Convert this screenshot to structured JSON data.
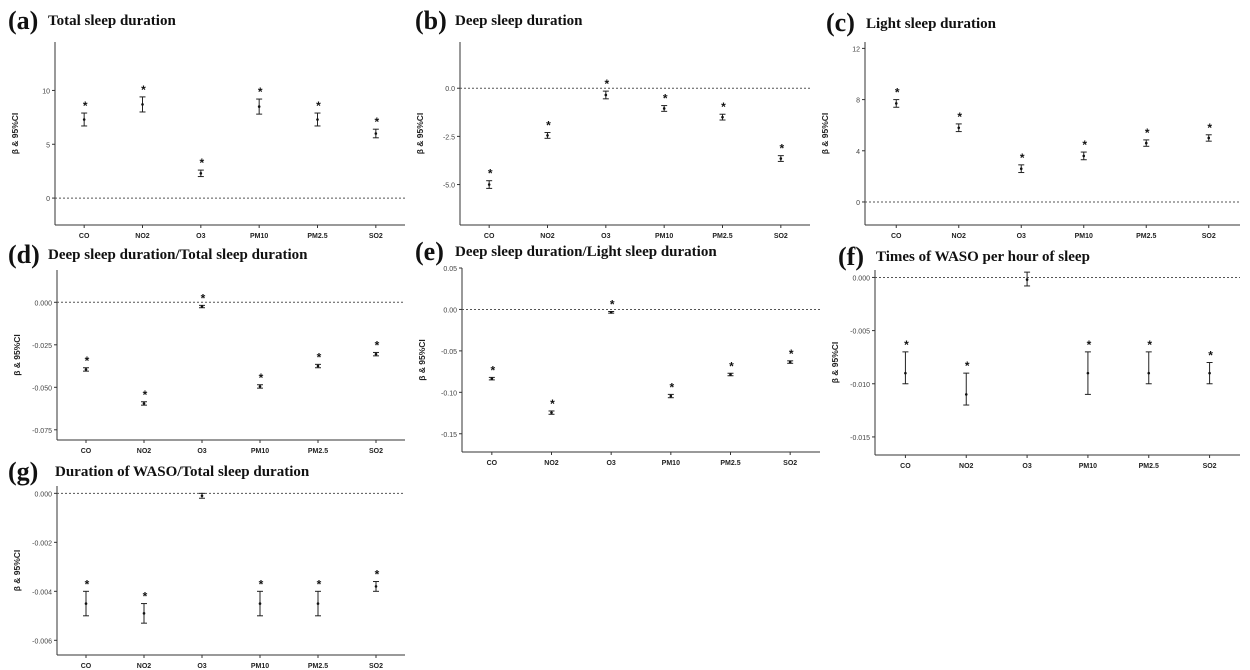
{
  "chart_data": [
    {
      "id": "a",
      "panel_label": "(a)",
      "title": "Total sleep duration",
      "type": "scatter",
      "ylabel": "β & 95%CI",
      "categories": [
        "CO",
        "NO2",
        "O3",
        "PM10",
        "PM2.5",
        "SO2"
      ],
      "ylim": [
        -2.5,
        14.5
      ],
      "yticks": [
        0,
        5,
        10
      ],
      "ytick_labels": [
        "0",
        "5",
        "10"
      ],
      "reference_line": 0,
      "values": [
        7.3,
        8.7,
        2.3,
        8.5,
        7.3,
        6.0
      ],
      "ci_low": [
        6.7,
        8.0,
        2.0,
        7.8,
        6.7,
        5.6
      ],
      "ci_high": [
        7.9,
        9.4,
        2.6,
        9.2,
        7.9,
        6.4
      ],
      "significance": [
        "*",
        "*",
        "*",
        "*",
        "*",
        "*"
      ]
    },
    {
      "id": "b",
      "panel_label": "(b)",
      "title": "Deep sleep duration",
      "type": "scatter",
      "ylabel": "β & 95%CI",
      "categories": [
        "CO",
        "NO2",
        "O3",
        "PM10",
        "PM2.5",
        "SO2"
      ],
      "ylim": [
        -7.1,
        2.4
      ],
      "yticks": [
        -5.0,
        -2.5,
        0.0
      ],
      "ytick_labels": [
        "-5.0",
        "-2.5",
        "0.0"
      ],
      "reference_line": 0,
      "values": [
        -5.0,
        -2.45,
        -0.35,
        -1.05,
        -1.5,
        -3.65
      ],
      "ci_low": [
        -5.2,
        -2.6,
        -0.55,
        -1.2,
        -1.65,
        -3.8
      ],
      "ci_high": [
        -4.8,
        -2.3,
        -0.15,
        -0.9,
        -1.35,
        -3.5
      ],
      "significance": [
        "*",
        "*",
        "*",
        "*",
        "*",
        "*"
      ]
    },
    {
      "id": "c",
      "panel_label": "(c)",
      "title": "Light sleep duration",
      "type": "scatter",
      "ylabel": "β & 95%CI",
      "categories": [
        "CO",
        "NO2",
        "O3",
        "PM10",
        "PM2.5",
        "SO2"
      ],
      "ylim": [
        -1.8,
        12.5
      ],
      "yticks": [
        0,
        4,
        8,
        12
      ],
      "ytick_labels": [
        "0",
        "4",
        "8",
        "12"
      ],
      "reference_line": 0,
      "values": [
        7.7,
        5.8,
        2.6,
        3.6,
        4.6,
        5.0
      ],
      "ci_low": [
        7.4,
        5.5,
        2.3,
        3.3,
        4.35,
        4.75
      ],
      "ci_high": [
        8.0,
        6.1,
        2.9,
        3.9,
        4.85,
        5.25
      ],
      "significance": [
        "*",
        "*",
        "*",
        "*",
        "*",
        "*"
      ]
    },
    {
      "id": "d",
      "panel_label": "(d)",
      "title": "Deep sleep duration/Total sleep duration",
      "type": "scatter",
      "ylabel": "β & 95%CI",
      "categories": [
        "CO",
        "NO2",
        "O3",
        "PM10",
        "PM2.5",
        "SO2"
      ],
      "ylim": [
        -0.081,
        0.019
      ],
      "yticks": [
        -0.075,
        -0.05,
        -0.025,
        0.0
      ],
      "ytick_labels": [
        "-0.075",
        "-0.050",
        "-0.025",
        "0.000"
      ],
      "reference_line": 0,
      "values": [
        -0.0395,
        -0.0595,
        -0.0025,
        -0.0495,
        -0.0375,
        -0.0305
      ],
      "ci_low": [
        -0.0405,
        -0.0605,
        -0.0032,
        -0.0505,
        -0.0385,
        -0.0315
      ],
      "ci_high": [
        -0.0385,
        -0.0585,
        -0.0018,
        -0.0485,
        -0.0365,
        -0.0295
      ],
      "significance": [
        "*",
        "*",
        "*",
        "*",
        "*",
        "*"
      ]
    },
    {
      "id": "e",
      "panel_label": "(e)",
      "title": "Deep sleep duration/Light sleep duration",
      "type": "scatter",
      "ylabel": "β & 95%CI",
      "categories": [
        "CO",
        "NO2",
        "O3",
        "PM10",
        "PM2.5",
        "SO2"
      ],
      "ylim": [
        -0.172,
        0.05
      ],
      "yticks": [
        -0.15,
        -0.1,
        -0.05,
        0.0,
        0.05
      ],
      "ytick_labels": [
        "-0.15",
        "-0.10",
        "-0.05",
        "0.00",
        "0.05"
      ],
      "reference_line": 0,
      "values": [
        -0.0835,
        -0.1245,
        -0.0035,
        -0.1045,
        -0.0785,
        -0.0635
      ],
      "ci_low": [
        -0.085,
        -0.1265,
        -0.0045,
        -0.1065,
        -0.08,
        -0.065
      ],
      "ci_high": [
        -0.082,
        -0.1225,
        -0.0025,
        -0.1025,
        -0.077,
        -0.062
      ],
      "significance": [
        "*",
        "*",
        "*",
        "*",
        "*",
        "*"
      ]
    },
    {
      "id": "f",
      "panel_label": "(f)",
      "title": "Times of WASO per hour of sleep",
      "type": "scatter",
      "ylabel": "β & 95%CI",
      "categories": [
        "CO",
        "NO2",
        "O3",
        "PM10",
        "PM2.5",
        "SO2"
      ],
      "ylim": [
        -0.0167,
        0.0007
      ],
      "yticks": [
        -0.015,
        -0.01,
        -0.005,
        0.0
      ],
      "ytick_labels": [
        "-0.015",
        "-0.010",
        "-0.005",
        "0.000"
      ],
      "reference_line": 0,
      "values": [
        -0.009,
        -0.011,
        -0.0002,
        -0.009,
        -0.009,
        -0.009
      ],
      "ci_low": [
        -0.01,
        -0.012,
        -0.0008,
        -0.011,
        -0.01,
        -0.01
      ],
      "ci_high": [
        -0.007,
        -0.009,
        0.0005,
        -0.007,
        -0.007,
        -0.008
      ],
      "significance": [
        "*",
        "*",
        "",
        "*",
        "*",
        "*"
      ]
    },
    {
      "id": "g",
      "panel_label": "(g)",
      "title": "Duration of WASO/Total sleep duration",
      "type": "scatter",
      "ylabel": "β & 95%CI",
      "categories": [
        "CO",
        "NO2",
        "O3",
        "PM10",
        "PM2.5",
        "SO2"
      ],
      "ylim": [
        -0.0066,
        0.0003
      ],
      "yticks": [
        -0.006,
        -0.004,
        -0.002,
        0.0
      ],
      "ytick_labels": [
        "-0.006",
        "-0.004",
        "-0.002",
        "0.000"
      ],
      "reference_line": 0,
      "values": [
        -0.0045,
        -0.0049,
        -0.0001,
        -0.0045,
        -0.0045,
        -0.0038
      ],
      "ci_low": [
        -0.005,
        -0.0053,
        -0.0002,
        -0.005,
        -0.005,
        -0.004
      ],
      "ci_high": [
        -0.004,
        -0.0045,
        0.0,
        -0.004,
        -0.004,
        -0.0036
      ],
      "significance": [
        "*",
        "*",
        "",
        "*",
        "*",
        "*"
      ]
    }
  ]
}
